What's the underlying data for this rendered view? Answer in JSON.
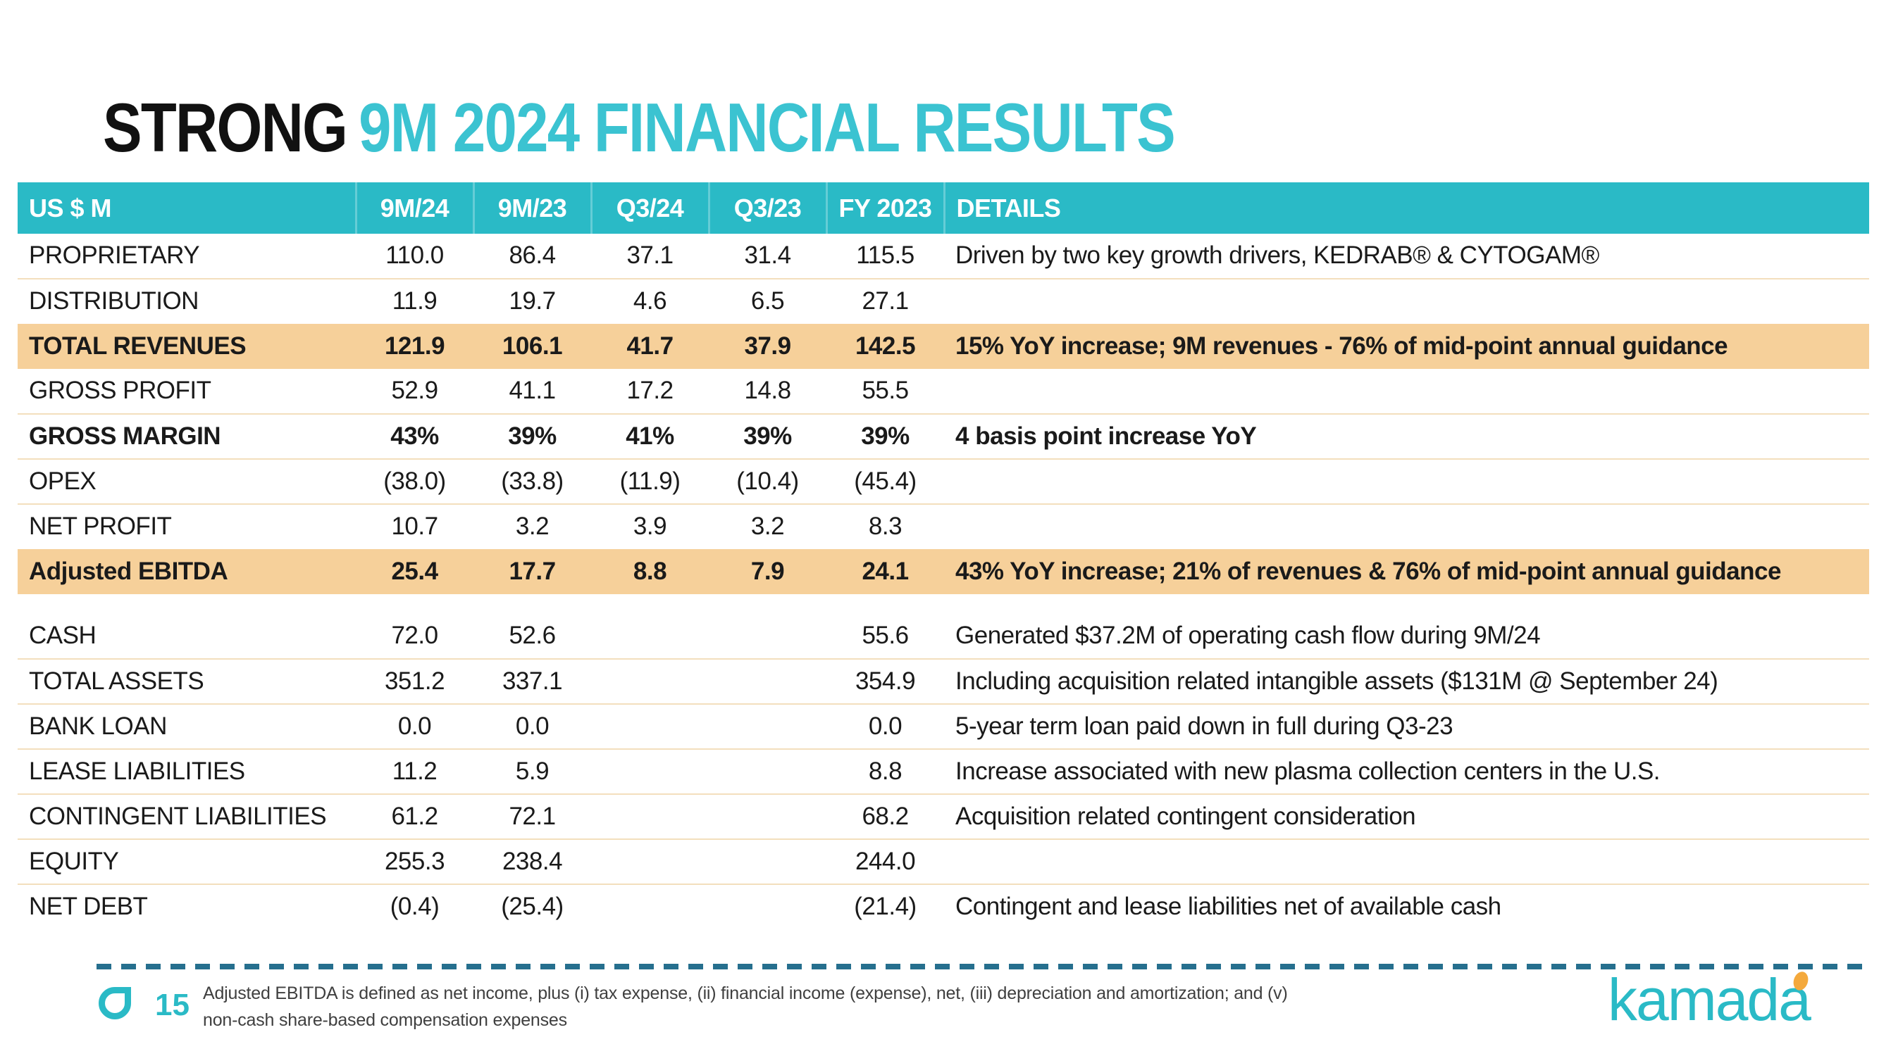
{
  "title": {
    "highlight_prefix": "STRONG",
    "rest": "9M 2024 FINANCIAL RESULTS"
  },
  "table": {
    "headers": [
      "US $ M",
      "9M/24",
      "9M/23",
      "Q3/24",
      "Q3/23",
      "FY 2023",
      "DETAILS"
    ],
    "rows": [
      {
        "label": "PROPRIETARY",
        "values": [
          "110.0",
          "86.4",
          "37.1",
          "31.4",
          "115.5"
        ],
        "details": "Driven by two key growth drivers, KEDRAB® & CYTOGAM®",
        "style": "normal"
      },
      {
        "label": "DISTRIBUTION",
        "values": [
          "11.9",
          "19.7",
          "4.6",
          "6.5",
          "27.1"
        ],
        "details": "",
        "style": "normal"
      },
      {
        "label": "TOTAL REVENUES",
        "values": [
          "121.9",
          "106.1",
          "41.7",
          "37.9",
          "142.5"
        ],
        "details": "15% YoY increase; 9M revenues - 76% of mid-point annual guidance",
        "style": "highlight"
      },
      {
        "label": "GROSS PROFIT",
        "values": [
          "52.9",
          "41.1",
          "17.2",
          "14.8",
          "55.5"
        ],
        "details": "",
        "style": "normal"
      },
      {
        "label": "GROSS MARGIN",
        "values": [
          "43%",
          "39%",
          "41%",
          "39%",
          "39%"
        ],
        "details": "4 basis point increase YoY",
        "style": "bold"
      },
      {
        "label": "OPEX",
        "values": [
          "(38.0)",
          "(33.8)",
          "(11.9)",
          "(10.4)",
          "(45.4)"
        ],
        "details": "",
        "style": "normal"
      },
      {
        "label": "NET PROFIT",
        "values": [
          "10.7",
          "3.2",
          "3.9",
          "3.2",
          "8.3"
        ],
        "details": "",
        "style": "normal"
      },
      {
        "label": "Adjusted EBITDA",
        "values": [
          "25.4",
          "17.7",
          "8.8",
          "7.9",
          "24.1"
        ],
        "details": "43% YoY increase; 21% of revenues & 76% of mid-point annual guidance",
        "style": "highlight"
      },
      {
        "label": "CASH",
        "values": [
          "72.0",
          "52.6",
          "",
          "",
          "55.6"
        ],
        "details": "Generated $37.2M of operating cash flow during 9M/24",
        "style": "normal",
        "gap_before": true
      },
      {
        "label": "TOTAL ASSETS",
        "values": [
          "351.2",
          "337.1",
          "",
          "",
          "354.9"
        ],
        "details": "Including acquisition related intangible assets ($131M @ September 24)",
        "style": "normal"
      },
      {
        "label": "BANK LOAN",
        "values": [
          "0.0",
          "0.0",
          "",
          "",
          "0.0"
        ],
        "details": "5-year term loan paid down in full during Q3-23",
        "style": "normal"
      },
      {
        "label": "LEASE LIABILITIES",
        "values": [
          "11.2",
          "5.9",
          "",
          "",
          "8.8"
        ],
        "details": "Increase associated with new plasma collection centers in the U.S.",
        "style": "normal"
      },
      {
        "label": "CONTINGENT LIABILITIES",
        "values": [
          "61.2",
          "72.1",
          "",
          "",
          "68.2"
        ],
        "details": "Acquisition related contingent consideration",
        "style": "normal"
      },
      {
        "label": "EQUITY",
        "values": [
          "255.3",
          "238.4",
          "",
          "",
          "244.0"
        ],
        "details": "",
        "style": "normal"
      },
      {
        "label": "NET DEBT",
        "values": [
          "(0.4)",
          "(25.4)",
          "",
          "",
          "(21.4)"
        ],
        "details": "Contingent and lease liabilities net of available cash",
        "style": "normal"
      }
    ]
  },
  "footer": {
    "page_number": "15",
    "footnote_line1": "Adjusted EBITDA is defined as net income, plus (i) tax expense, (ii) financial income (expense), net, (iii) depreciation and amortization; and (v)",
    "footnote_line2": "non-cash share-based compensation expenses",
    "logo_text": "kamada"
  },
  "colors": {
    "header_teal": "#2ABAC6",
    "title_teal": "#3BC3D1",
    "row_highlight": "#F6D09A",
    "row_divider": "#F3DFBD",
    "dash_line": "#266F8E",
    "logo_dot_orange": "#F4A93C"
  }
}
